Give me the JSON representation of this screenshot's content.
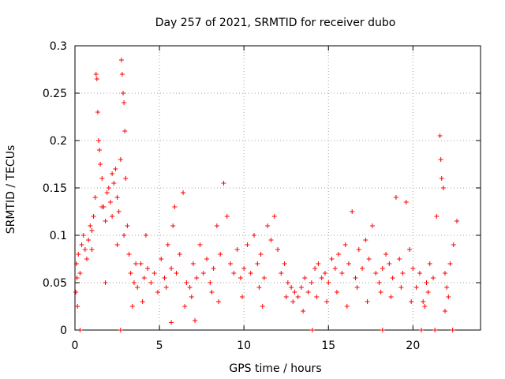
{
  "chart_data": {
    "type": "scatter",
    "title": "Day 257 of 2021, SRMTID for receiver dubo",
    "xlabel": "GPS time / hours",
    "ylabel": "SRMTID / TECUs",
    "xlim": [
      0,
      24
    ],
    "ylim": [
      0,
      0.3
    ],
    "grid": true,
    "xticks": [
      0,
      5,
      10,
      15,
      20
    ],
    "yticks": [
      0,
      0.05,
      0.1,
      0.15,
      0.2,
      0.25,
      0.3
    ],
    "xtick_labels": [
      "0",
      "5",
      "10",
      "15",
      "20"
    ],
    "ytick_labels": [
      "0",
      "0.05",
      "0.1",
      "0.15",
      "0.2",
      "0.25",
      "0.3"
    ],
    "marker": "+",
    "color": "#ff0000",
    "series": [
      {
        "name": "SRMTID",
        "points": [
          [
            0.05,
            0.04
          ],
          [
            0.08,
            0.07
          ],
          [
            0.12,
            0.055
          ],
          [
            0.2,
            0.08
          ],
          [
            0.3,
            0.06
          ],
          [
            0.4,
            0.09
          ],
          [
            0.5,
            0.1
          ],
          [
            0.6,
            0.085
          ],
          [
            0.7,
            0.075
          ],
          [
            0.8,
            0.095
          ],
          [
            0.9,
            0.11
          ],
          [
            1.0,
            0.105
          ],
          [
            1.1,
            0.12
          ],
          [
            1.2,
            0.14
          ],
          [
            1.25,
            0.27
          ],
          [
            1.3,
            0.265
          ],
          [
            1.35,
            0.23
          ],
          [
            1.4,
            0.2
          ],
          [
            1.45,
            0.19
          ],
          [
            1.5,
            0.175
          ],
          [
            1.6,
            0.16
          ],
          [
            1.7,
            0.13
          ],
          [
            1.8,
            0.115
          ],
          [
            1.9,
            0.145
          ],
          [
            2.0,
            0.15
          ],
          [
            2.1,
            0.135
          ],
          [
            2.2,
            0.165
          ],
          [
            2.3,
            0.155
          ],
          [
            2.4,
            0.17
          ],
          [
            2.5,
            0.14
          ],
          [
            2.6,
            0.125
          ],
          [
            2.7,
            0.18
          ],
          [
            2.75,
            0.285
          ],
          [
            2.8,
            0.27
          ],
          [
            2.85,
            0.25
          ],
          [
            2.9,
            0.24
          ],
          [
            2.95,
            0.21
          ],
          [
            3.0,
            0.16
          ],
          [
            3.1,
            0.11
          ],
          [
            3.2,
            0.08
          ],
          [
            3.3,
            0.06
          ],
          [
            3.5,
            0.05
          ],
          [
            3.7,
            0.045
          ],
          [
            3.9,
            0.07
          ],
          [
            4.1,
            0.055
          ],
          [
            4.3,
            0.065
          ],
          [
            4.5,
            0.05
          ],
          [
            4.7,
            0.06
          ],
          [
            4.9,
            0.04
          ],
          [
            5.1,
            0.075
          ],
          [
            5.3,
            0.055
          ],
          [
            5.5,
            0.09
          ],
          [
            5.7,
            0.065
          ],
          [
            5.8,
            0.11
          ],
          [
            5.9,
            0.13
          ],
          [
            6.0,
            0.06
          ],
          [
            6.2,
            0.08
          ],
          [
            6.4,
            0.145
          ],
          [
            6.6,
            0.05
          ],
          [
            6.8,
            0.045
          ],
          [
            7.0,
            0.07
          ],
          [
            7.2,
            0.055
          ],
          [
            7.4,
            0.09
          ],
          [
            7.6,
            0.06
          ],
          [
            7.8,
            0.075
          ],
          [
            8.0,
            0.05
          ],
          [
            8.2,
            0.065
          ],
          [
            8.4,
            0.11
          ],
          [
            8.6,
            0.08
          ],
          [
            8.8,
            0.155
          ],
          [
            9.0,
            0.12
          ],
          [
            9.2,
            0.07
          ],
          [
            9.4,
            0.06
          ],
          [
            9.6,
            0.085
          ],
          [
            9.8,
            0.055
          ],
          [
            10.0,
            0.065
          ],
          [
            10.2,
            0.09
          ],
          [
            10.4,
            0.06
          ],
          [
            10.6,
            0.1
          ],
          [
            10.8,
            0.07
          ],
          [
            11.0,
            0.08
          ],
          [
            11.2,
            0.055
          ],
          [
            11.4,
            0.11
          ],
          [
            11.6,
            0.095
          ],
          [
            11.8,
            0.12
          ],
          [
            12.0,
            0.085
          ],
          [
            12.2,
            0.06
          ],
          [
            12.4,
            0.07
          ],
          [
            12.6,
            0.05
          ],
          [
            12.8,
            0.045
          ],
          [
            13.0,
            0.04
          ],
          [
            13.2,
            0.035
          ],
          [
            13.4,
            0.045
          ],
          [
            13.6,
            0.055
          ],
          [
            13.8,
            0.04
          ],
          [
            14.0,
            0.05
          ],
          [
            14.2,
            0.065
          ],
          [
            14.4,
            0.07
          ],
          [
            14.6,
            0.055
          ],
          [
            14.8,
            0.06
          ],
          [
            15.0,
            0.05
          ],
          [
            15.2,
            0.075
          ],
          [
            15.4,
            0.065
          ],
          [
            15.6,
            0.08
          ],
          [
            15.8,
            0.06
          ],
          [
            16.0,
            0.09
          ],
          [
            16.2,
            0.07
          ],
          [
            16.4,
            0.125
          ],
          [
            16.6,
            0.055
          ],
          [
            16.8,
            0.085
          ],
          [
            17.0,
            0.065
          ],
          [
            17.2,
            0.095
          ],
          [
            17.4,
            0.075
          ],
          [
            17.6,
            0.11
          ],
          [
            17.8,
            0.06
          ],
          [
            18.0,
            0.05
          ],
          [
            18.2,
            0.065
          ],
          [
            18.4,
            0.08
          ],
          [
            18.6,
            0.07
          ],
          [
            18.8,
            0.055
          ],
          [
            19.0,
            0.14
          ],
          [
            19.2,
            0.075
          ],
          [
            19.4,
            0.06
          ],
          [
            19.6,
            0.135
          ],
          [
            19.8,
            0.085
          ],
          [
            20.0,
            0.065
          ],
          [
            20.2,
            0.045
          ],
          [
            20.4,
            0.06
          ],
          [
            20.6,
            0.03
          ],
          [
            20.8,
            0.05
          ],
          [
            21.0,
            0.07
          ],
          [
            21.2,
            0.055
          ],
          [
            21.4,
            0.12
          ],
          [
            21.6,
            0.205
          ],
          [
            21.65,
            0.18
          ],
          [
            21.7,
            0.16
          ],
          [
            21.8,
            0.15
          ],
          [
            21.9,
            0.06
          ],
          [
            22.0,
            0.045
          ],
          [
            22.2,
            0.07
          ],
          [
            22.4,
            0.09
          ],
          [
            22.6,
            0.115
          ],
          [
            0.15,
            0.025
          ],
          [
            1.8,
            0.05
          ],
          [
            2.5,
            0.09
          ],
          [
            3.4,
            0.025
          ],
          [
            4.0,
            0.03
          ],
          [
            6.5,
            0.025
          ],
          [
            7.1,
            0.01
          ],
          [
            5.7,
            0.008
          ],
          [
            8.5,
            0.03
          ],
          [
            9.9,
            0.035
          ],
          [
            11.1,
            0.025
          ],
          [
            12.5,
            0.035
          ],
          [
            13.5,
            0.02
          ],
          [
            14.9,
            0.03
          ],
          [
            16.1,
            0.025
          ],
          [
            17.3,
            0.03
          ],
          [
            18.7,
            0.035
          ],
          [
            19.9,
            0.03
          ],
          [
            20.7,
            0.025
          ],
          [
            21.9,
            0.02
          ],
          [
            4.2,
            0.1
          ],
          [
            5.4,
            0.045
          ],
          [
            6.9,
            0.035
          ],
          [
            8.1,
            0.04
          ],
          [
            10.9,
            0.045
          ],
          [
            12.9,
            0.03
          ],
          [
            14.3,
            0.035
          ],
          [
            15.5,
            0.04
          ],
          [
            16.7,
            0.045
          ],
          [
            18.1,
            0.04
          ],
          [
            19.3,
            0.045
          ],
          [
            20.9,
            0.04
          ],
          [
            22.1,
            0.035
          ],
          [
            1.0,
            0.085
          ],
          [
            1.6,
            0.13
          ],
          [
            2.2,
            0.12
          ],
          [
            2.9,
            0.1
          ],
          [
            3.6,
            0.07
          ]
        ]
      },
      {
        "name": "markers on x-axis",
        "points": [
          [
            0.3,
            0
          ],
          [
            2.7,
            0
          ],
          [
            14.05,
            0
          ],
          [
            18.2,
            0
          ],
          [
            20.5,
            0
          ],
          [
            21.3,
            0
          ],
          [
            22.35,
            0
          ]
        ]
      }
    ]
  }
}
